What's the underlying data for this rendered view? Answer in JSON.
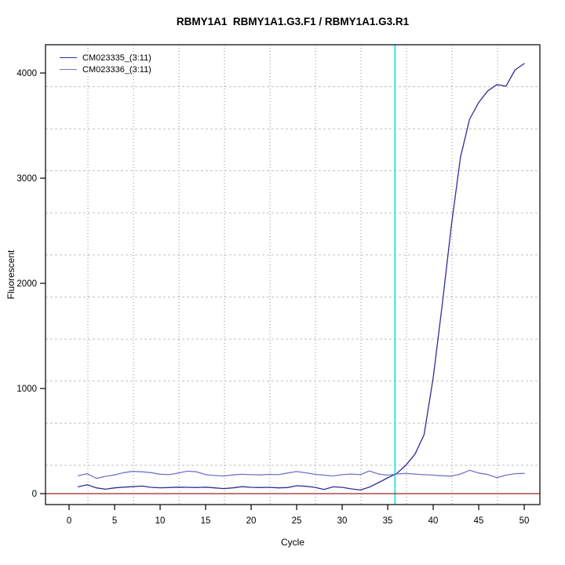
{
  "figure": {
    "title": "RBMY1A1  RBMY1A1.G3.F1 / RBMY1A1.G3.R1"
  },
  "chart_data": {
    "type": "line",
    "title": "RBMY1A1  RBMY1A1.G3.F1 / RBMY1A1.G3.R1",
    "xlabel": "Cycle",
    "ylabel": "Fluorescent",
    "xlim": [
      -2.59,
      51.72
    ],
    "ylim": [
      -104,
      4269
    ],
    "x_ticks": [
      0,
      5,
      10,
      15,
      20,
      25,
      30,
      35,
      40,
      45,
      50
    ],
    "y_ticks": [
      0,
      1000,
      2000,
      3000,
      4000
    ],
    "grid_on": true,
    "grid": {
      "x_lines": [
        2.07,
        7.07,
        12.07,
        17.07,
        22.07,
        27.07,
        32.07,
        37.07,
        42.07,
        47.07
      ],
      "y_lines": [
        270,
        670,
        1070,
        1470,
        1870,
        2270,
        2670,
        3070,
        3470,
        3870
      ],
      "x_color": "#8f8f8f",
      "y_color": "#c2c2c2"
    },
    "threshold_vline": {
      "x": 35.8,
      "color": "#40e0e0"
    },
    "zero_hline": {
      "y": 0,
      "color": "#a03a3a"
    },
    "legend_position": "top-left",
    "x": [
      1,
      2,
      3,
      4,
      5,
      6,
      7,
      8,
      9,
      10,
      11,
      12,
      13,
      14,
      15,
      16,
      17,
      18,
      19,
      20,
      21,
      22,
      23,
      24,
      25,
      26,
      27,
      28,
      29,
      30,
      31,
      32,
      33,
      34,
      35,
      36,
      37,
      38,
      39,
      40,
      41,
      42,
      43,
      44,
      45,
      46,
      47,
      48,
      49,
      50
    ],
    "series": [
      {
        "name": "CM023335_(3:11)",
        "color": "#2e2e96",
        "values": [
          65,
          85,
          55,
          42,
          55,
          62,
          66,
          72,
          60,
          56,
          58,
          62,
          60,
          58,
          62,
          55,
          48,
          55,
          66,
          60,
          58,
          60,
          55,
          58,
          75,
          70,
          60,
          40,
          65,
          60,
          45,
          35,
          62,
          105,
          150,
          192,
          270,
          375,
          560,
          1100,
          1800,
          2550,
          3200,
          3560,
          3720,
          3830,
          3890,
          3875,
          4030,
          4090
        ]
      },
      {
        "name": "CM023336_(3:11)",
        "color": "#7474cc",
        "values": [
          170,
          190,
          145,
          165,
          178,
          200,
          212,
          208,
          200,
          185,
          180,
          196,
          214,
          208,
          180,
          172,
          168,
          178,
          184,
          180,
          178,
          183,
          180,
          196,
          210,
          198,
          184,
          176,
          168,
          180,
          186,
          180,
          216,
          186,
          176,
          186,
          192,
          186,
          180,
          176,
          170,
          166,
          186,
          222,
          196,
          182,
          152,
          176,
          190,
          192
        ]
      }
    ]
  }
}
